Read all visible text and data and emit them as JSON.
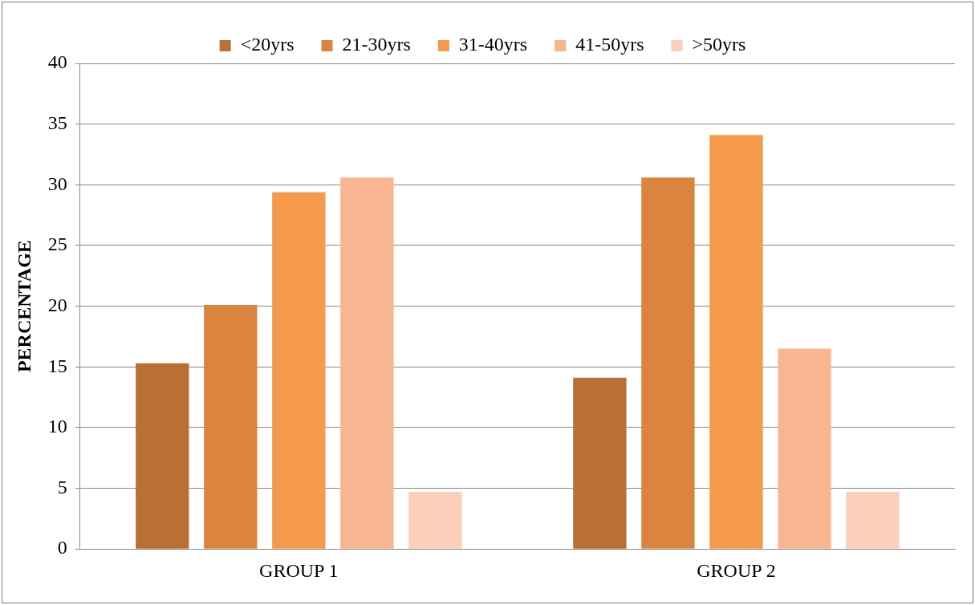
{
  "chart_data": {
    "type": "bar",
    "ylabel": "PERCENTAGE",
    "categories": [
      "GROUP 1",
      "GROUP 2"
    ],
    "series": [
      {
        "name": "<20yrs",
        "color": "#b87033",
        "values": [
          15.3,
          14.1
        ]
      },
      {
        "name": "21-30yrs",
        "color": "#db843d",
        "values": [
          20.1,
          30.6
        ]
      },
      {
        "name": "31-40yrs",
        "color": "#f59a4b",
        "values": [
          29.4,
          34.1
        ]
      },
      {
        "name": "41-50yrs",
        "color": "#f8b58f",
        "values": [
          30.6,
          16.5
        ]
      },
      {
        "name": ">50yrs",
        "color": "#fbcfb9",
        "values": [
          4.7,
          4.7
        ]
      }
    ],
    "ylim": [
      0,
      40
    ],
    "yticks": [
      0,
      5,
      10,
      15,
      20,
      25,
      30,
      35,
      40
    ],
    "grid": "y",
    "legend": "top"
  }
}
